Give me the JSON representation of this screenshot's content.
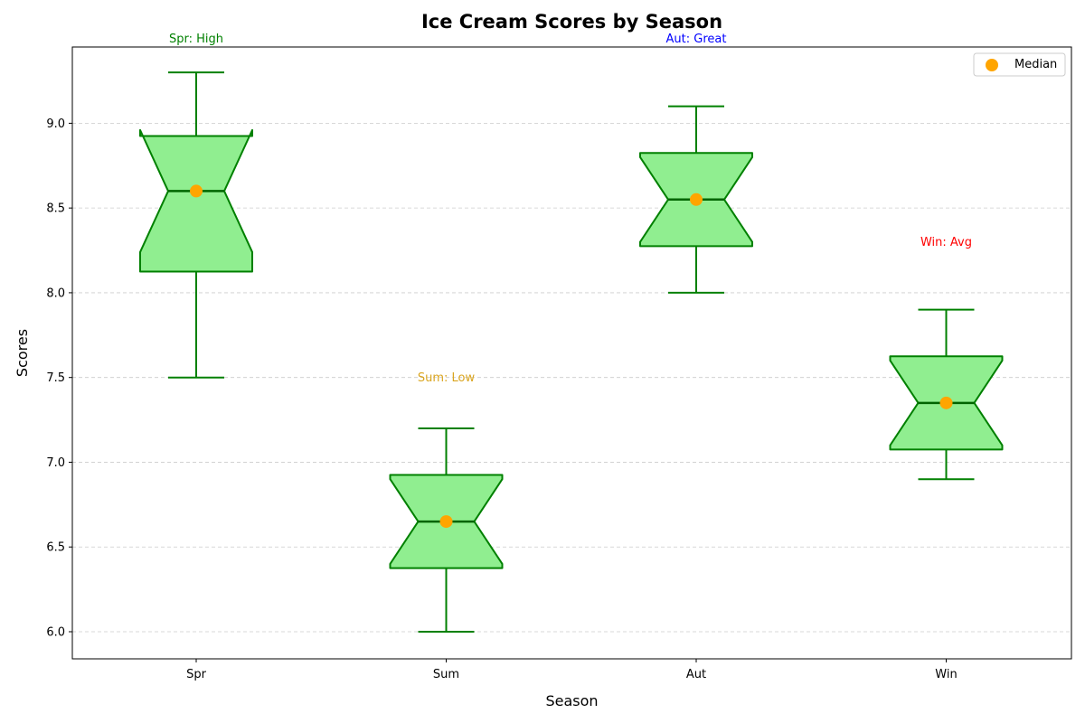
{
  "chart_data": {
    "type": "boxplot",
    "title": "Ice Cream Scores by Season",
    "xlabel": "Season",
    "ylabel": "Scores",
    "categories": [
      "Spr",
      "Sum",
      "Aut",
      "Win"
    ],
    "ylim": [
      5.84,
      9.45
    ],
    "yticks": [
      6.0,
      6.5,
      7.0,
      7.5,
      8.0,
      8.5,
      9.0
    ],
    "ytick_labels": [
      "6.0",
      "6.5",
      "7.0",
      "7.5",
      "8.0",
      "8.5",
      "9.0"
    ],
    "grid": "y-dashed",
    "notched": true,
    "boxes": [
      {
        "category": "Spr",
        "whisker_low": 7.5,
        "q1": 8.125,
        "median": 8.6,
        "q3": 8.925,
        "whisker_high": 9.3,
        "notch_low": 8.24,
        "notch_high": 8.96
      },
      {
        "category": "Sum",
        "whisker_low": 6.0,
        "q1": 6.375,
        "median": 6.65,
        "q3": 6.925,
        "whisker_high": 7.2,
        "notch_low": 6.4,
        "notch_high": 6.9
      },
      {
        "category": "Aut",
        "whisker_low": 8.0,
        "q1": 8.275,
        "median": 8.55,
        "q3": 8.825,
        "whisker_high": 9.1,
        "notch_low": 8.3,
        "notch_high": 8.8
      },
      {
        "category": "Win",
        "whisker_low": 6.9,
        "q1": 7.075,
        "median": 7.35,
        "q3": 7.625,
        "whisker_high": 7.9,
        "notch_low": 7.1,
        "notch_high": 7.6
      }
    ],
    "annotations": [
      {
        "text": "Spr: High",
        "category": "Spr",
        "y": 9.5,
        "color": "#008000"
      },
      {
        "text": "Sum: Low",
        "category": "Sum",
        "y": 7.5,
        "color": "#DAA520"
      },
      {
        "text": "Aut: Great",
        "category": "Aut",
        "y": 9.5,
        "color": "#0000FF"
      },
      {
        "text": "Win: Avg",
        "category": "Win",
        "y": 8.3,
        "color": "#FF0000"
      }
    ],
    "legend": {
      "position": "top-right",
      "entries": [
        {
          "label": "Median",
          "marker": "circle",
          "color": "#FFA500"
        }
      ]
    },
    "colors": {
      "box_fill": "#90EE90",
      "box_edge": "#008000",
      "median_line": "#006400",
      "median_marker": "#FFA500",
      "grid": "#CCCCCC"
    }
  }
}
